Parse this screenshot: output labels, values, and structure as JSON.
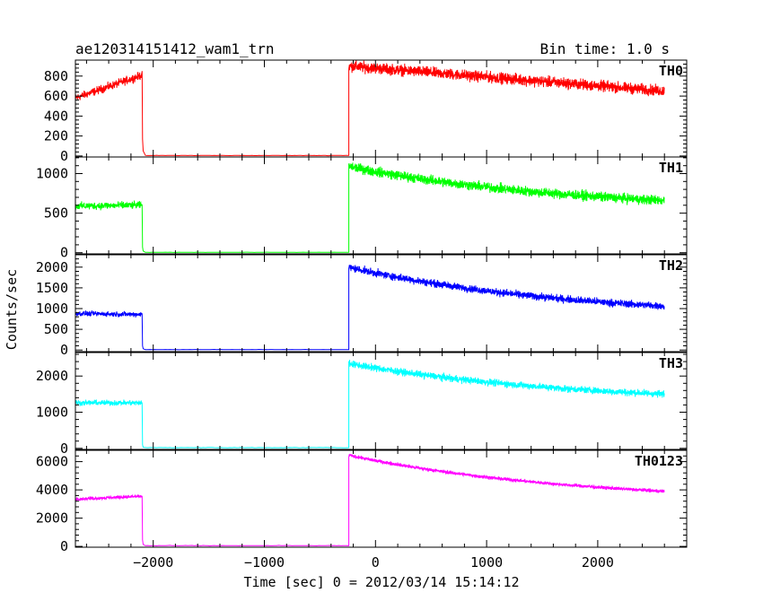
{
  "header": {
    "title": "ae120314151412_wam1_trn",
    "bin_time": "Bin time: 1.0 s"
  },
  "chart_data": {
    "type": "line",
    "title": "ae120314151412_wam1_trn",
    "xlabel": "Time [sec] 0 = 2012/03/14 15:14:12",
    "ylabel": "Counts/sec",
    "xlim": [
      -2700,
      2800
    ],
    "x_ticks": [
      -2000,
      -1000,
      0,
      1000,
      2000
    ],
    "x_tick_labels": [
      "−2000",
      "−1000",
      "0",
      "1000",
      "2000"
    ],
    "grid": false,
    "segments": {
      "pre": [
        -2700,
        -2100
      ],
      "gap": [
        -2100,
        -240
      ],
      "post": [
        -240,
        2600
      ]
    },
    "series": [
      {
        "name": "TH0",
        "color": "#ff0000",
        "ylim": [
          -10,
          960
        ],
        "y_ticks": [
          0,
          200,
          400,
          600,
          800
        ],
        "y_tick_labels": [
          "0",
          "200",
          "400",
          "600",
          "800"
        ],
        "pre_start": 580,
        "pre_end": 810,
        "pre_noise": 60,
        "spike": 170,
        "floor": 5,
        "post_start": 900,
        "post_end": 650,
        "post_noise": 80,
        "post_decay": "linear"
      },
      {
        "name": "TH1",
        "color": "#00ff00",
        "ylim": [
          -15,
          1210
        ],
        "y_ticks": [
          0,
          500,
          1000
        ],
        "y_tick_labels": [
          "0",
          "500",
          "1000"
        ],
        "pre_start": 590,
        "pre_end": 600,
        "pre_noise": 70,
        "spike": 70,
        "floor": 5,
        "post_start": 1090,
        "post_end": 660,
        "post_noise": 90,
        "post_decay": "exp"
      },
      {
        "name": "TH2",
        "color": "#0000ff",
        "ylim": [
          -40,
          2300
        ],
        "y_ticks": [
          0,
          500,
          1000,
          1500,
          2000
        ],
        "y_tick_labels": [
          "0",
          "500",
          "1000",
          "1500",
          "2000"
        ],
        "pre_start": 880,
        "pre_end": 860,
        "pre_noise": 90,
        "spike": 100,
        "floor": 10,
        "post_start": 2000,
        "post_end": 1060,
        "post_noise": 130,
        "post_decay": "exp"
      },
      {
        "name": "TH3",
        "color": "#00ffff",
        "ylim": [
          -30,
          2650
        ],
        "y_ticks": [
          0,
          1000,
          2000
        ],
        "y_tick_labels": [
          "0",
          "1000",
          "2000"
        ],
        "pre_start": 1260,
        "pre_end": 1260,
        "pre_noise": 110,
        "spike": 100,
        "floor": 20,
        "post_start": 2350,
        "post_end": 1500,
        "post_noise": 140,
        "post_decay": "exp"
      },
      {
        "name": "TH0123",
        "color": "#ff00ff",
        "ylim": [
          -60,
          6800
        ],
        "y_ticks": [
          0,
          2000,
          4000,
          6000
        ],
        "y_tick_labels": [
          "0",
          "2000",
          "4000",
          "6000"
        ],
        "pre_start": 3350,
        "pre_end": 3550,
        "pre_noise": 160,
        "spike": 450,
        "floor": 50,
        "post_start": 6450,
        "post_end": 3900,
        "post_noise": 170,
        "post_decay": "exp"
      }
    ]
  }
}
